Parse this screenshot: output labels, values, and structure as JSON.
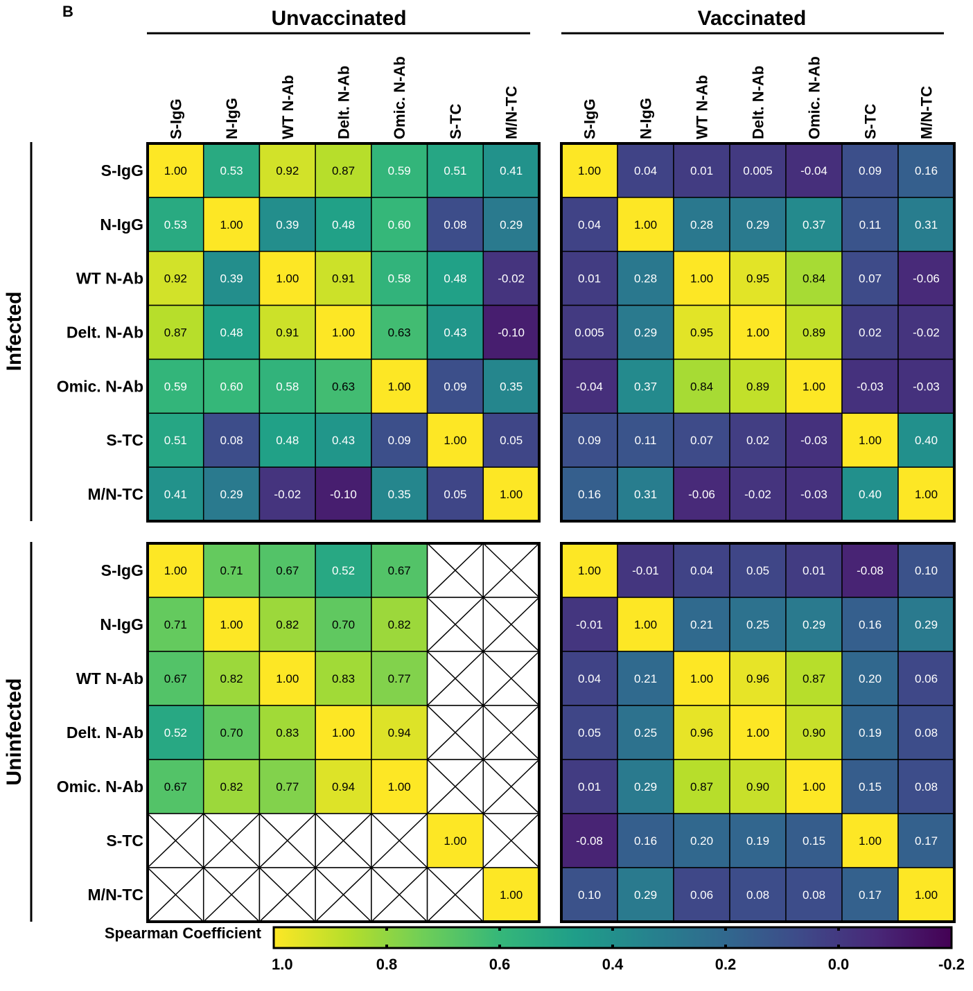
{
  "panel_label": "B",
  "group_titles": {
    "left": "Unvaccinated",
    "right": "Vaccinated"
  },
  "row_group_titles": {
    "top": "Infected",
    "bottom": "Uninfected"
  },
  "colorbar": {
    "label": "Spearman Coefficient",
    "ticks": [
      "1.0",
      "0.8",
      "0.6",
      "0.4",
      "0.2",
      "0.0",
      "-0.2"
    ],
    "range": [
      -0.2,
      1.0
    ],
    "colormap": "viridis (reversed)"
  },
  "colors": {
    "viridis_stops": [
      "#440154",
      "#482878",
      "#3e4a89",
      "#31688e",
      "#26828e",
      "#1f9e89",
      "#35b779",
      "#6ece58",
      "#b5de2b",
      "#fde725"
    ],
    "missing": "#ffffff",
    "border": "#000000"
  },
  "chart_data": {
    "type": "heatmap",
    "variables": [
      "S-IgG",
      "N-IgG",
      "WT N-Ab",
      "Delt. N-Ab",
      "Omic. N-Ab",
      "S-TC",
      "M/N-TC"
    ],
    "panels": [
      {
        "name": "Infected / Unvaccinated",
        "values": [
          [
            "1.00",
            "0.53",
            "0.92",
            "0.87",
            "0.59",
            "0.51",
            "0.41"
          ],
          [
            "0.53",
            "1.00",
            "0.39",
            "0.48",
            "0.60",
            "0.08",
            "0.29"
          ],
          [
            "0.92",
            "0.39",
            "1.00",
            "0.91",
            "0.58",
            "0.48",
            "-0.02"
          ],
          [
            "0.87",
            "0.48",
            "0.91",
            "1.00",
            "0.63",
            "0.43",
            "-0.10"
          ],
          [
            "0.59",
            "0.60",
            "0.58",
            "0.63",
            "1.00",
            "0.09",
            "0.35"
          ],
          [
            "0.51",
            "0.08",
            "0.48",
            "0.43",
            "0.09",
            "1.00",
            "0.05"
          ],
          [
            "0.41",
            "0.29",
            "-0.02",
            "-0.10",
            "0.35",
            "0.05",
            "1.00"
          ]
        ]
      },
      {
        "name": "Infected / Vaccinated",
        "values": [
          [
            "1.00",
            "0.04",
            "0.01",
            "0.005",
            "-0.04",
            "0.09",
            "0.16"
          ],
          [
            "0.04",
            "1.00",
            "0.28",
            "0.29",
            "0.37",
            "0.11",
            "0.31"
          ],
          [
            "0.01",
            "0.28",
            "1.00",
            "0.95",
            "0.84",
            "0.07",
            "-0.06"
          ],
          [
            "0.005",
            "0.29",
            "0.95",
            "1.00",
            "0.89",
            "0.02",
            "-0.02"
          ],
          [
            "-0.04",
            "0.37",
            "0.84",
            "0.89",
            "1.00",
            "-0.03",
            "-0.03"
          ],
          [
            "0.09",
            "0.11",
            "0.07",
            "0.02",
            "-0.03",
            "1.00",
            "0.40"
          ],
          [
            "0.16",
            "0.31",
            "-0.06",
            "-0.02",
            "-0.03",
            "0.40",
            "1.00"
          ]
        ]
      },
      {
        "name": "Uninfected / Unvaccinated",
        "values": [
          [
            "1.00",
            "0.71",
            "0.67",
            "0.52",
            "0.67",
            null,
            null
          ],
          [
            "0.71",
            "1.00",
            "0.82",
            "0.70",
            "0.82",
            null,
            null
          ],
          [
            "0.67",
            "0.82",
            "1.00",
            "0.83",
            "0.77",
            null,
            null
          ],
          [
            "0.52",
            "0.70",
            "0.83",
            "1.00",
            "0.94",
            null,
            null
          ],
          [
            "0.67",
            "0.82",
            "0.77",
            "0.94",
            "1.00",
            null,
            null
          ],
          [
            null,
            null,
            null,
            null,
            null,
            "1.00",
            null
          ],
          [
            null,
            null,
            null,
            null,
            null,
            null,
            "1.00"
          ]
        ]
      },
      {
        "name": "Uninfected / Vaccinated",
        "values": [
          [
            "1.00",
            "-0.01",
            "0.04",
            "0.05",
            "0.01",
            "-0.08",
            "0.10"
          ],
          [
            "-0.01",
            "1.00",
            "0.21",
            "0.25",
            "0.29",
            "0.16",
            "0.29"
          ],
          [
            "0.04",
            "0.21",
            "1.00",
            "0.96",
            "0.87",
            "0.20",
            "0.06"
          ],
          [
            "0.05",
            "0.25",
            "0.96",
            "1.00",
            "0.90",
            "0.19",
            "0.08"
          ],
          [
            "0.01",
            "0.29",
            "0.87",
            "0.90",
            "1.00",
            "0.15",
            "0.08"
          ],
          [
            "-0.08",
            "0.16",
            "0.20",
            "0.19",
            "0.15",
            "1.00",
            "0.17"
          ],
          [
            "0.10",
            "0.29",
            "0.06",
            "0.08",
            "0.08",
            "0.17",
            "1.00"
          ]
        ]
      }
    ]
  }
}
